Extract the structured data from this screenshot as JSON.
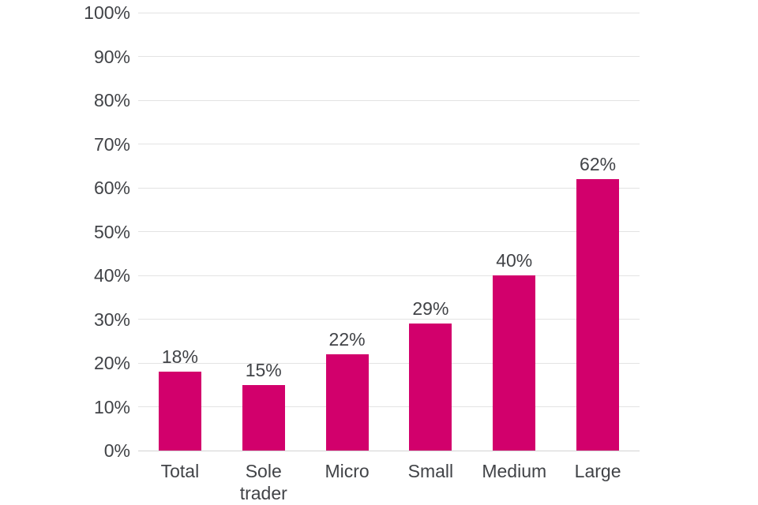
{
  "chart_data": {
    "type": "bar",
    "categories": [
      "Total",
      "Sole trader",
      "Micro",
      "Small",
      "Medium",
      "Large"
    ],
    "values": [
      18,
      15,
      22,
      29,
      40,
      62
    ],
    "value_labels": [
      "18%",
      "15%",
      "22%",
      "29%",
      "40%",
      "62%"
    ],
    "title": "",
    "xlabel": "",
    "ylabel": "",
    "ylim": [
      0,
      100
    ],
    "ytick_step": 10,
    "ytick_labels": [
      "0%",
      "10%",
      "20%",
      "30%",
      "40%",
      "50%",
      "60%",
      "70%",
      "80%",
      "90%",
      "100%"
    ],
    "grid": true,
    "legend": false,
    "colors": {
      "bar": "#d2006c",
      "text": "#414347",
      "gridline": "#e3e3e3",
      "axis_line": "#d2d2d2",
      "background": "#ffffff"
    }
  }
}
